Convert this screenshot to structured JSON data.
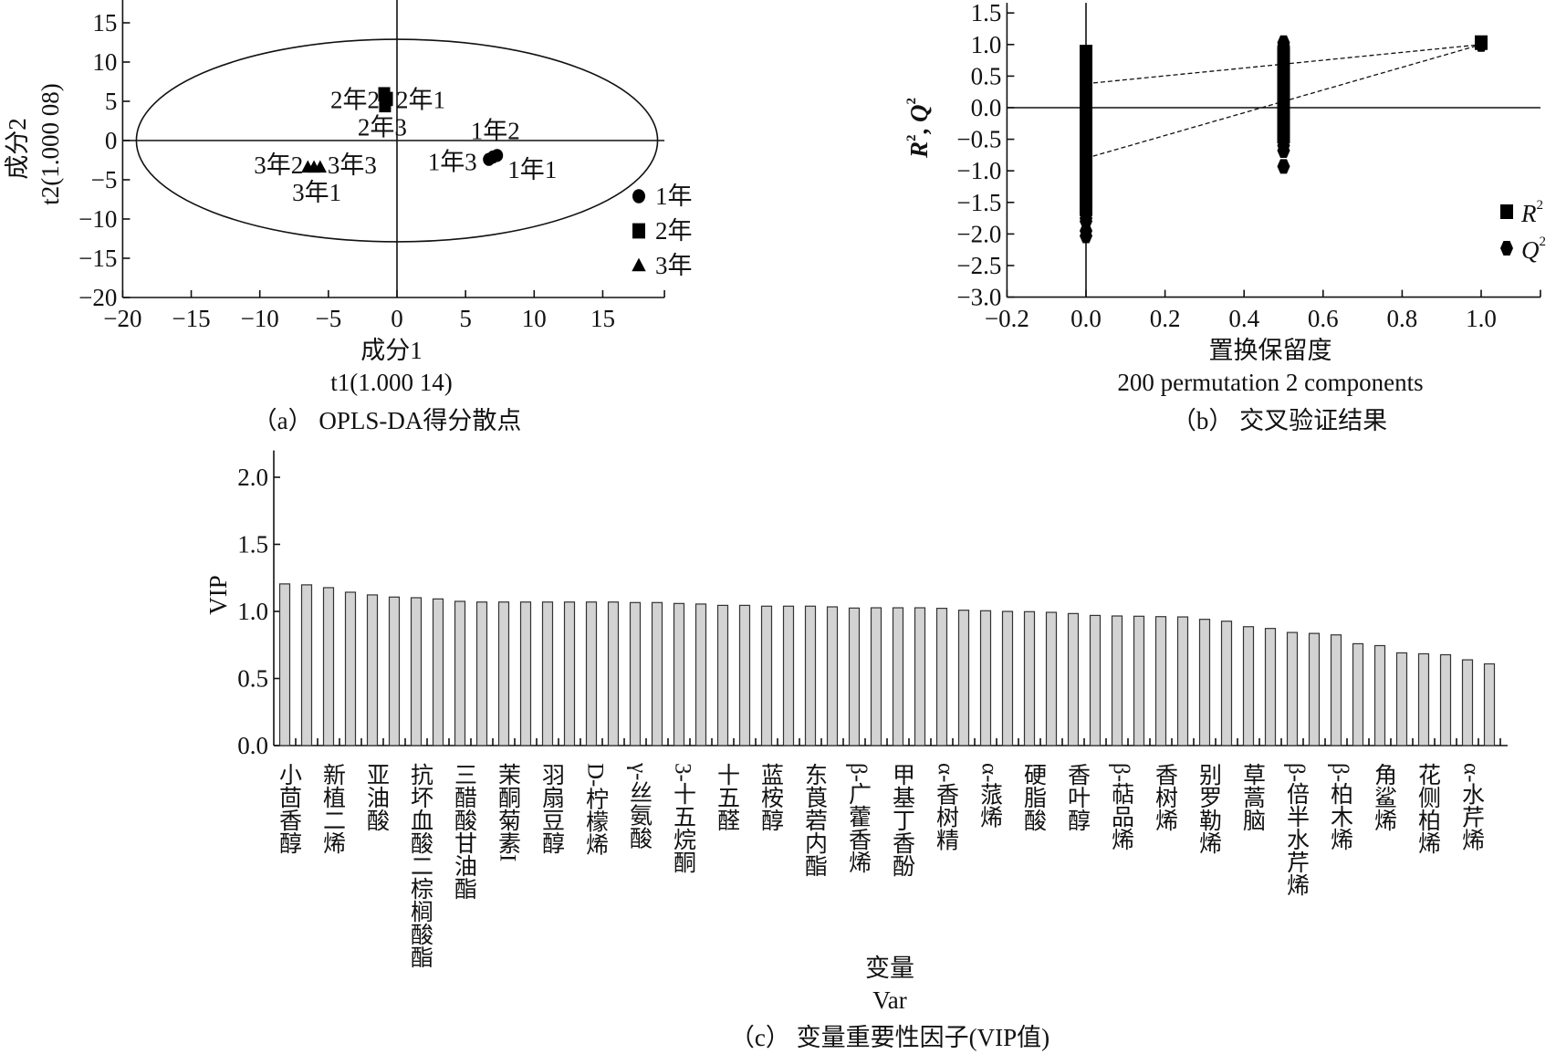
{
  "chart_data": [
    {
      "type": "scatter",
      "caption": "（a） OPLS-DA得分散点",
      "xlabel": [
        "成分1",
        "t1(1.000 14)"
      ],
      "ylabel": [
        "成分2",
        "t2(1.000 08)"
      ],
      "xlim": [
        -20,
        19.5
      ],
      "ylim": [
        -20,
        18
      ],
      "xticks": [
        -20,
        -15,
        -10,
        -5,
        0,
        5,
        10,
        15
      ],
      "xticklabels": [
        "−20",
        "−15",
        "−10",
        "−5",
        "0",
        "5",
        "10",
        "15"
      ],
      "yticks": [
        15,
        10,
        5,
        0,
        -5,
        -10,
        -15,
        -20
      ],
      "yticklabels": [
        "15",
        "10",
        "5",
        "0",
        "−5",
        "−10",
        "−15",
        "−20"
      ],
      "ellipse": {
        "center": [
          0,
          0
        ],
        "rx": 19,
        "ry": 12.9
      },
      "legend": "right",
      "series": [
        {
          "name": "1年",
          "marker": "circle",
          "points": [
            {
              "label": "1年1",
              "x": 7.0,
              "y": -2.1
            },
            {
              "label": "1年2",
              "x": 7.3,
              "y": -1.9
            },
            {
              "label": "1年3",
              "x": 6.7,
              "y": -2.4
            }
          ]
        },
        {
          "name": "2年",
          "marker": "square",
          "points": [
            {
              "label": "2年1",
              "x": -0.73,
              "y": 5.3
            },
            {
              "label": "2年2",
              "x": -0.93,
              "y": 5.9
            },
            {
              "label": "2年3",
              "x": -0.87,
              "y": 4.5
            }
          ]
        },
        {
          "name": "3年",
          "marker": "triangle",
          "points": [
            {
              "label": "3年1",
              "x": -6.05,
              "y": -3.4
            },
            {
              "label": "3年2",
              "x": -6.5,
              "y": -3.4
            },
            {
              "label": "3年3",
              "x": -5.6,
              "y": -3.4
            }
          ]
        }
      ]
    },
    {
      "type": "scatter",
      "caption": "（b） 交叉验证结果",
      "xlabel": [
        "置换保留度",
        "200 permutation 2 components"
      ],
      "ylabel": {
        "r": "R",
        "sep": ", ",
        "q": "Q",
        "sup": "2"
      },
      "xlim": [
        -0.2,
        1.15
      ],
      "ylim": [
        -3.0,
        1.66
      ],
      "xticks": [
        -0.2,
        0,
        0.2,
        0.4,
        0.6,
        0.8,
        1.0
      ],
      "xticklabels": [
        "−0.2",
        "0.0",
        "0.2",
        "0.4",
        "0.6",
        "0.8",
        "1.0"
      ],
      "yticks": [
        1.5,
        1.0,
        0.5,
        0,
        -0.5,
        -1.0,
        -1.5,
        -2.0,
        -2.5,
        -3.0
      ],
      "yticklabels": [
        "1.5",
        "1.0",
        "0.5",
        "0.0",
        "−0.5",
        "−1.0",
        "−1.5",
        "−2.0",
        "−2.5",
        "−3.0"
      ],
      "legend": "right",
      "series": [
        {
          "name": "R",
          "sup": "2",
          "marker": "square",
          "intercept": 0.38,
          "points": [
            [
              0,
              -1.6
            ],
            [
              0,
              -1.5
            ],
            [
              0,
              -1.4
            ],
            [
              0,
              -1.3
            ],
            [
              0,
              -1.2
            ],
            [
              0,
              -1.1
            ],
            [
              0,
              -1.0
            ],
            [
              0,
              -0.9
            ],
            [
              0,
              -0.8
            ],
            [
              0,
              -0.7
            ],
            [
              0,
              -0.6
            ],
            [
              0,
              -0.5
            ],
            [
              0,
              -0.4
            ],
            [
              0,
              -0.3
            ],
            [
              0,
              -0.2
            ],
            [
              0,
              -0.1
            ],
            [
              0,
              0.0
            ],
            [
              0,
              0.1
            ],
            [
              0,
              0.2
            ],
            [
              0,
              0.3
            ],
            [
              0,
              0.4
            ],
            [
              0,
              0.5
            ],
            [
              0,
              0.6
            ],
            [
              0,
              0.7
            ],
            [
              0,
              0.8
            ],
            [
              0,
              0.88
            ],
            [
              0.5,
              -0.45
            ],
            [
              0.5,
              -0.35
            ],
            [
              0.5,
              -0.25
            ],
            [
              0.5,
              -0.15
            ],
            [
              0.5,
              -0.05
            ],
            [
              0.5,
              0.05
            ],
            [
              0.5,
              0.15
            ],
            [
              0.5,
              0.25
            ],
            [
              0.5,
              0.35
            ],
            [
              0.5,
              0.45
            ],
            [
              0.5,
              0.55
            ],
            [
              0.5,
              0.65
            ],
            [
              0.5,
              0.75
            ],
            [
              0.5,
              0.85
            ],
            [
              1.0,
              1.03
            ]
          ]
        },
        {
          "name": "Q",
          "sup": "2",
          "marker": "hexagon",
          "intercept": -0.8,
          "points": [
            [
              0,
              -2.03
            ],
            [
              0,
              -1.95
            ],
            [
              0,
              -1.8
            ],
            [
              0,
              -1.75
            ],
            [
              0,
              -1.6
            ],
            [
              0,
              -1.5
            ],
            [
              0,
              -1.4
            ],
            [
              0,
              -1.3
            ],
            [
              0,
              -1.2
            ],
            [
              0,
              -1.1
            ],
            [
              0,
              -1.0
            ],
            [
              0,
              -0.9
            ],
            [
              0,
              -0.8
            ],
            [
              0,
              -0.7
            ],
            [
              0,
              -0.6
            ],
            [
              0,
              -0.5
            ],
            [
              0,
              -0.4
            ],
            [
              0,
              -0.3
            ],
            [
              0,
              -0.2
            ],
            [
              0,
              -0.1
            ],
            [
              0,
              0.0
            ],
            [
              0,
              0.1
            ],
            [
              0,
              0.2
            ],
            [
              0,
              0.3
            ],
            [
              0.5,
              -0.93
            ],
            [
              0.5,
              -0.68
            ],
            [
              0.5,
              -0.6
            ],
            [
              0.5,
              -0.5
            ],
            [
              0.5,
              -0.4
            ],
            [
              0.5,
              -0.3
            ],
            [
              0.5,
              -0.2
            ],
            [
              0.5,
              -0.1
            ],
            [
              0.5,
              0.0
            ],
            [
              0.5,
              0.1
            ],
            [
              0.5,
              0.2
            ],
            [
              0.5,
              0.3
            ],
            [
              0.5,
              0.98
            ],
            [
              0.5,
              1.03
            ],
            [
              1.0,
              1.0
            ]
          ]
        }
      ]
    },
    {
      "type": "bar",
      "caption": "（c） 变量重要性因子(VIP值)",
      "xlabel": [
        "变量",
        "Var"
      ],
      "ylabel": "VIP",
      "ylim": [
        0,
        2.2
      ],
      "yticks": [
        0,
        0.5,
        1.0,
        1.5,
        2.0
      ],
      "yticklabels": [
        "0.0",
        "0.5",
        "1.0",
        "1.5",
        "2.0"
      ],
      "categories": [
        "小茴香醇",
        "",
        "新植二烯",
        "",
        "亚油酸",
        "",
        "抗坏血酸二棕榈酸酯",
        "",
        "三醋酸甘油酯",
        "",
        "茉酮菊素I",
        "",
        "羽扇豆醇",
        "",
        "D-柠檬烯",
        "",
        "γ-丝氨酸",
        "",
        "3-十五烷酮",
        "",
        "十五醛",
        "",
        "蓝桉醇",
        "",
        "东莨菪内酯",
        "",
        "β-广藿香烯",
        "",
        "甲基丁香酚",
        "",
        "α-香树精",
        "",
        "α-蒎烯",
        "",
        "硬脂酸",
        "",
        "香叶醇",
        "",
        "β-萜品烯",
        "",
        "香树烯",
        "",
        "别罗勒烯",
        "",
        "草蒿脑",
        "",
        "β-倍半水芹烯",
        "",
        "β-柏木烯",
        "",
        "角鲨烯",
        "",
        "花侧柏烯",
        "",
        "α-水芹烯",
        ""
      ],
      "values": [
        1.205,
        1.198,
        1.177,
        1.143,
        1.123,
        1.107,
        1.102,
        1.093,
        1.075,
        1.07,
        1.07,
        1.07,
        1.07,
        1.07,
        1.07,
        1.07,
        1.066,
        1.066,
        1.059,
        1.055,
        1.045,
        1.045,
        1.039,
        1.039,
        1.039,
        1.034,
        1.025,
        1.027,
        1.027,
        1.027,
        1.023,
        1.009,
        1.005,
        1.0,
        0.998,
        0.993,
        0.984,
        0.97,
        0.966,
        0.964,
        0.961,
        0.959,
        0.941,
        0.927,
        0.886,
        0.873,
        0.843,
        0.836,
        0.825,
        0.759,
        0.745,
        0.691,
        0.684,
        0.677,
        0.639,
        0.609
      ]
    }
  ]
}
